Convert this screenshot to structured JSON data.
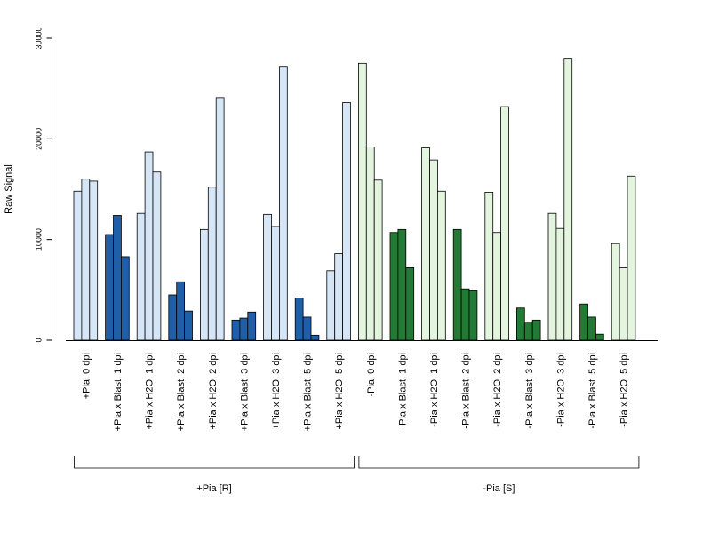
{
  "chart_data": {
    "type": "bar",
    "ylabel": "Raw Signal",
    "ylim": [
      0,
      30000
    ],
    "yticks": [
      "0",
      "10000",
      "20000",
      "30000"
    ],
    "categories": [
      "+Pia, 0 dpi",
      "+Pia x Blast, 1 dpi",
      "+Pia x H2O, 1 dpi",
      "+Pia x Blast, 2 dpi",
      "+Pia x H2O, 2 dpi",
      "+Pia x Blast, 3 dpi",
      "+Pia x H2O, 3 dpi",
      "+Pia x Blast, 5 dpi",
      "+Pia x H2O, 5 dpi",
      "-Pia, 0 dpi",
      "-Pia x Blast, 1 dpi",
      "-Pia x H2O, 1 dpi",
      "-Pia x Blast, 2 dpi",
      "-Pia x H2O, 2 dpi",
      "-Pia x Blast, 3 dpi",
      "-Pia x H2O, 3 dpi",
      "-Pia x Blast, 5 dpi",
      "-Pia x H2O, 5 dpi"
    ],
    "values": [
      [
        14800,
        16000,
        15800
      ],
      [
        10500,
        12400,
        8300
      ],
      [
        12600,
        18700,
        16700
      ],
      [
        4500,
        5800,
        2900
      ],
      [
        11000,
        15200,
        24100
      ],
      [
        2000,
        2200,
        2800
      ],
      [
        12500,
        11300,
        27200
      ],
      [
        4200,
        2300,
        500
      ],
      [
        6900,
        8600,
        23600
      ],
      [
        27500,
        19200,
        15900
      ],
      [
        10700,
        11000,
        7200
      ],
      [
        19100,
        17900,
        14800
      ],
      [
        11000,
        5100,
        4900
      ],
      [
        14700,
        10700,
        23200
      ],
      [
        3200,
        1800,
        2000
      ],
      [
        12600,
        11100,
        28000
      ],
      [
        3600,
        2300,
        600
      ],
      [
        9600,
        7200,
        16300
      ]
    ],
    "fill_colors": [
      "light",
      "dark",
      "light",
      "dark",
      "light",
      "dark",
      "light",
      "dark",
      "light",
      "light",
      "dark",
      "light",
      "dark",
      "light",
      "dark",
      "light",
      "dark",
      "light"
    ],
    "groups": [
      {
        "label": "+Pia [R]",
        "first": 0,
        "last": 8,
        "light_color": "#d6e6f6",
        "dark_color": "#1f5ea8"
      },
      {
        "label": "-Pia [S]",
        "first": 9,
        "last": 17,
        "light_color": "#e3f5de",
        "dark_color": "#237a35"
      }
    ],
    "grid": false,
    "legend": "none"
  }
}
